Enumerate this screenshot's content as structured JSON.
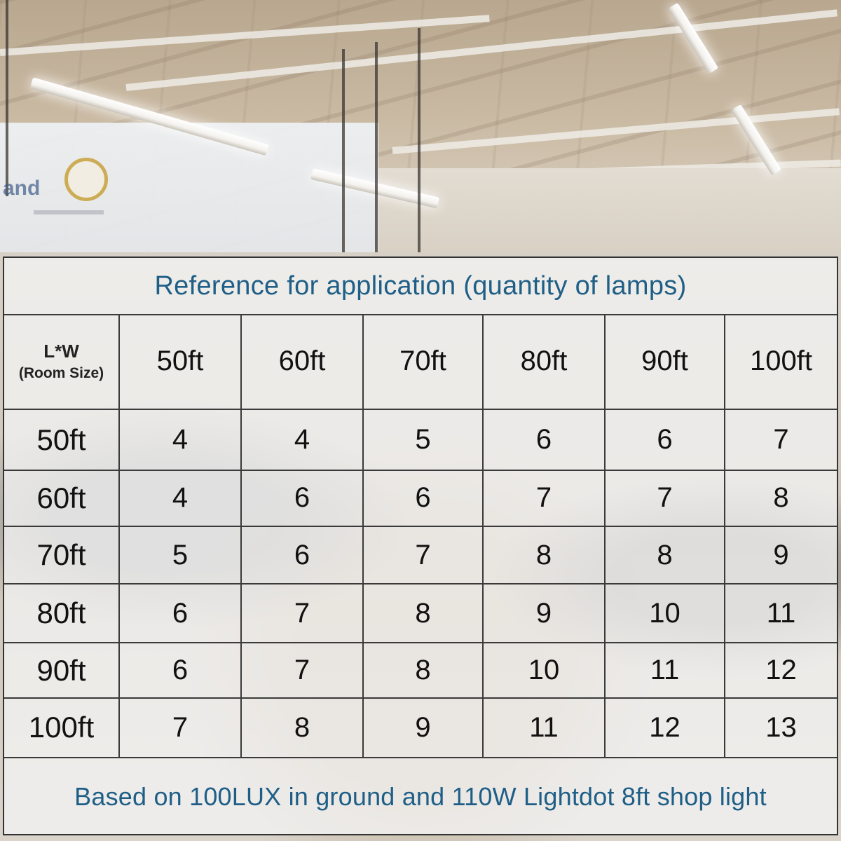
{
  "background": {
    "signage_text": "and"
  },
  "table": {
    "title": "Reference for application (quantity of lamps)",
    "corner_label": "L*W",
    "corner_sublabel": "(Room Size)",
    "columns": [
      "50ft",
      "60ft",
      "70ft",
      "80ft",
      "90ft",
      "100ft"
    ],
    "rows": [
      {
        "label": "50ft",
        "values": [
          "4",
          "4",
          "5",
          "6",
          "6",
          "7"
        ]
      },
      {
        "label": "60ft",
        "values": [
          "4",
          "6",
          "6",
          "7",
          "7",
          "8"
        ]
      },
      {
        "label": "70ft",
        "values": [
          "5",
          "6",
          "7",
          "8",
          "8",
          "9"
        ]
      },
      {
        "label": "80ft",
        "values": [
          "6",
          "7",
          "8",
          "9",
          "10",
          "11"
        ]
      },
      {
        "label": "90ft",
        "values": [
          "6",
          "7",
          "8",
          "10",
          "11",
          "12"
        ]
      },
      {
        "label": "100ft",
        "values": [
          "7",
          "8",
          "9",
          "11",
          "12",
          "13"
        ]
      }
    ],
    "footnote": "Based on 100LUX in ground and 110W Lightdot 8ft shop light"
  },
  "colors": {
    "title_text": "#1f5f87",
    "grid_lines": "#3a3a3a",
    "cell_text": "#111111"
  }
}
